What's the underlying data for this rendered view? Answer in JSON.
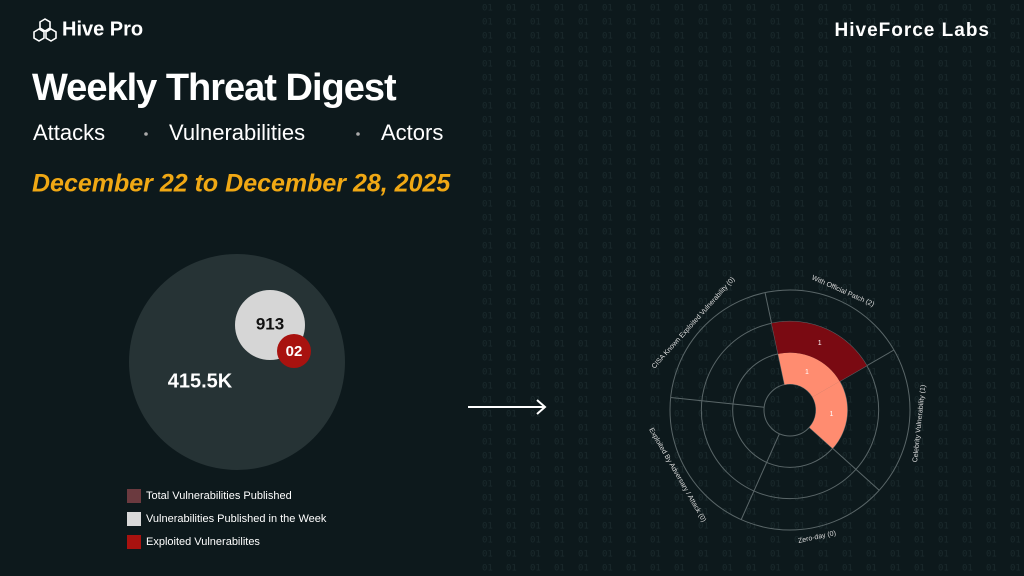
{
  "header": {
    "brand": "Hive Pro",
    "lab": "HiveForce Labs",
    "title": "Weekly Threat Digest",
    "topics": [
      "Attacks",
      "Vulnerabilities",
      "Actors"
    ],
    "date": "December 22 to December 28, 2025"
  },
  "chart_data": [
    {
      "type": "bubble",
      "series": [
        {
          "name": "Total Vulnerabilities Published",
          "color": "#6b3a3f",
          "values": [
            415500
          ],
          "value_labels": [
            "415.5K"
          ]
        },
        {
          "name": "Vulnerabilities Published in the Week",
          "color": "#d9d9d9",
          "values": [
            913
          ]
        },
        {
          "name": "Exploited Vulnerabilites",
          "color": "#a8120f",
          "values": [
            2
          ],
          "value_labels": [
            "02"
          ]
        }
      ]
    },
    {
      "type": "polar",
      "categories": [
        "With Official Patch (2)",
        "Celebrity Vulnerability (1)",
        "Zero-day (0)",
        "Exploited By Adversary / Attack (0)",
        "CISA Known Exploited Vulnerability (0)"
      ],
      "series": [
        {
          "color": "#ff8c70",
          "values": [
            1,
            1,
            0,
            0,
            0
          ]
        },
        {
          "color": "#7a0a12",
          "values": [
            1,
            0,
            0,
            0,
            0
          ]
        }
      ],
      "ylim": [
        0,
        3
      ],
      "yticks": [
        1,
        2,
        3
      ],
      "grid": true
    }
  ]
}
